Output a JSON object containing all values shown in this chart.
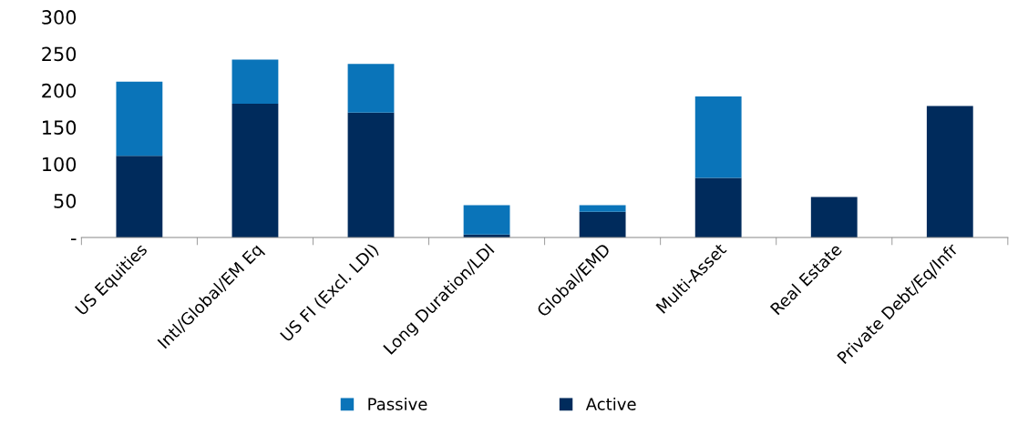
{
  "chart_data": {
    "type": "bar",
    "stacked": true,
    "categories": [
      "US Equities",
      "Intl/Global/EM Eq",
      "US FI (Excl. LDI)",
      "Long Duration/LDI",
      "Global/EMD",
      "Multi-Asset",
      "Real Estate",
      "Private Debt/Eq/Infr"
    ],
    "series": [
      {
        "name": "Active",
        "color": "#002b5c",
        "values": [
          111,
          182,
          170,
          4,
          35,
          81,
          55,
          179
        ]
      },
      {
        "name": "Passive",
        "color": "#0a74b9",
        "values": [
          101,
          60,
          66,
          40,
          9,
          111,
          0,
          0
        ]
      }
    ],
    "ylim": [
      0,
      300
    ],
    "yticks": [
      {
        "value": 0,
        "label": "-"
      },
      50,
      100,
      150,
      200,
      250,
      300
    ],
    "grid": false,
    "legend": "bottom"
  }
}
